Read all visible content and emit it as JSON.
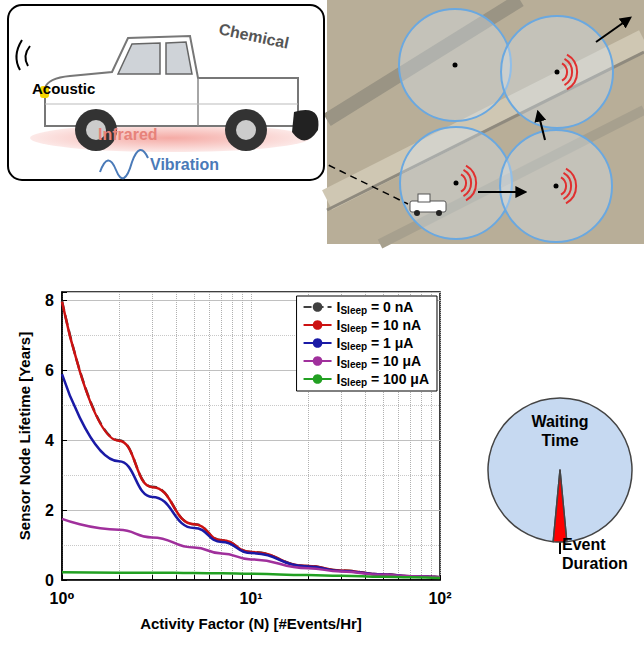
{
  "illustration": {
    "labels": [
      "Acoustic",
      "Chemical",
      "Infrared",
      "Vibration"
    ]
  },
  "chart_data": [
    {
      "type": "line",
      "x_label": "Activity Factor (N) [#Events/Hr]",
      "y_label": "Sensor Node Lifetime [Years]",
      "log": "x",
      "grid": true,
      "legend": "upper right",
      "x": [
        1,
        2,
        3,
        5,
        7,
        10,
        20,
        30,
        50,
        70,
        100
      ],
      "xlim": [
        1,
        100
      ],
      "xticks": [
        {
          "value": 1,
          "label": "10⁰"
        },
        {
          "value": 10,
          "label": "10¹"
        },
        {
          "value": 100,
          "label": "10²"
        }
      ],
      "ylim": [
        0,
        8.25
      ],
      "yticks": [
        0,
        2,
        4,
        6,
        8
      ],
      "series": [
        {
          "name": "ISleep = 0 nA",
          "color": "#404040",
          "line_style": "dashed",
          "values": [
            8,
            4,
            2.67,
            1.6,
            1.14,
            0.8,
            0.4,
            0.27,
            0.16,
            0.11,
            0.08
          ]
        },
        {
          "name": "ISleep = 10 nA",
          "color": "#cc1111",
          "line_style": "solid",
          "values": [
            7.97,
            3.99,
            2.66,
            1.6,
            1.14,
            0.8,
            0.4,
            0.27,
            0.16,
            0.11,
            0.08
          ]
        },
        {
          "name": "ISleep = 1 μA",
          "color": "#1a1aa6",
          "line_style": "solid",
          "values": [
            5.9,
            3.4,
            2.38,
            1.49,
            1.09,
            0.77,
            0.39,
            0.26,
            0.16,
            0.11,
            0.08
          ]
        },
        {
          "name": "ISleep = 10 μA",
          "color": "#a0309c",
          "line_style": "solid",
          "values": [
            1.75,
            1.44,
            1.22,
            0.93,
            0.76,
            0.59,
            0.34,
            0.24,
            0.15,
            0.11,
            0.08
          ]
        },
        {
          "name": "ISleep = 100 μA",
          "color": "#22a022",
          "line_style": "solid",
          "values": [
            0.22,
            0.21,
            0.21,
            0.2,
            0.19,
            0.18,
            0.14,
            0.12,
            0.09,
            0.08,
            0.06
          ]
        }
      ]
    },
    {
      "type": "pie",
      "categories": [
        "Waiting Time",
        "Event Duration"
      ],
      "values": [
        97,
        3
      ],
      "colors": [
        "#c6d9f1",
        "#ff0000"
      ]
    }
  ]
}
